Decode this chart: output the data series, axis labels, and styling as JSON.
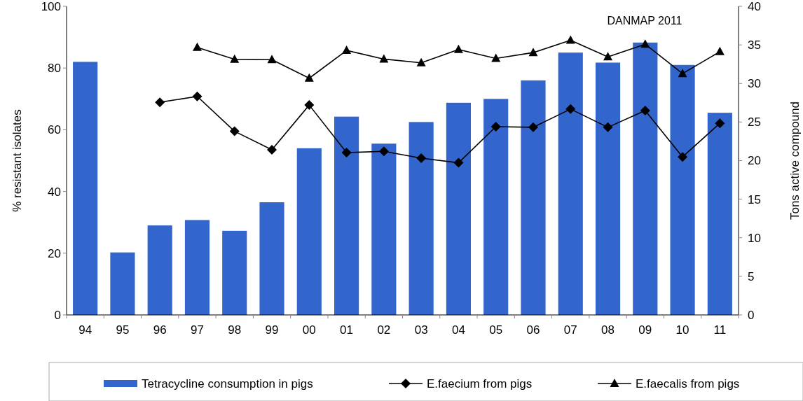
{
  "chart_data": {
    "type": "bar",
    "annotations": [
      "DANMAP 2011"
    ],
    "ylabel": "% resistant isolates",
    "y2label": "Tons  active compound",
    "categories": [
      "94",
      "95",
      "96",
      "97",
      "98",
      "99",
      "00",
      "01",
      "02",
      "03",
      "04",
      "05",
      "06",
      "07",
      "08",
      "09",
      "10",
      "11"
    ],
    "series": [
      {
        "name": "Tetracycline consumption in pigs",
        "axis": "y2",
        "color": "#3366cc",
        "values": [
          32.8,
          8.1,
          11.6,
          12.3,
          10.9,
          14.6,
          21.6,
          25.7,
          22.2,
          25.0,
          27.5,
          28.0,
          30.4,
          34.0,
          32.7,
          35.3,
          32.4,
          26.2
        ]
      },
      {
        "name": "E.faecium from pigs",
        "type": "line",
        "axis": "y",
        "color": "#000000",
        "marker": "diamond",
        "values": [
          null,
          null,
          68.9,
          70.8,
          59.5,
          53.5,
          68.0,
          52.6,
          53.0,
          50.8,
          49.3,
          61.0,
          60.8,
          66.7,
          60.8,
          66.2,
          51.2,
          62.1
        ]
      },
      {
        "name": "E.faecalis from pigs",
        "type": "line",
        "axis": "y",
        "color": "#000000",
        "marker": "triangle",
        "values": [
          null,
          null,
          null,
          86.7,
          82.8,
          82.7,
          76.7,
          85.7,
          82.9,
          81.7,
          86.0,
          83.1,
          85.0,
          89.0,
          83.6,
          87.7,
          78.2,
          85.3
        ]
      }
    ],
    "ylim": [
      0,
      100
    ],
    "yticks": [
      0,
      20,
      40,
      60,
      80,
      100
    ],
    "y2lim": [
      0,
      40
    ],
    "y2ticks": [
      0,
      5,
      10,
      15,
      20,
      25,
      30,
      35,
      40
    ],
    "legend": "bottom",
    "grid": false
  }
}
